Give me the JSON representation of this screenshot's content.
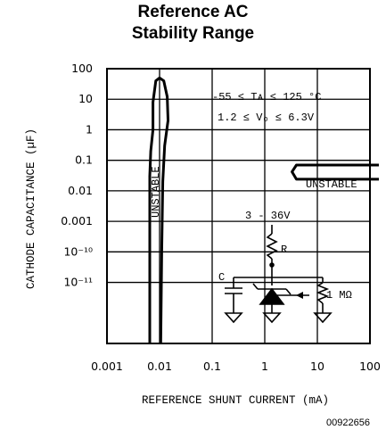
{
  "chart_data": {
    "type": "area",
    "title_line1": "Reference AC",
    "title_line2": "Stability Range",
    "xlabel": "REFERENCE SHUNT CURRENT (mA)",
    "ylabel": "CATHODE CAPACITANCE (µF)",
    "x_scale": "log",
    "y_scale": "log",
    "xlim": [
      0.001,
      100
    ],
    "ylim": [
      1e-07,
      100
    ],
    "x_ticks": [
      {
        "value": 0.001,
        "label": "0.001"
      },
      {
        "value": 0.01,
        "label": "0.01"
      },
      {
        "value": 0.1,
        "label": "0.1"
      },
      {
        "value": 1,
        "label": "1"
      },
      {
        "value": 10,
        "label": "10"
      },
      {
        "value": 100,
        "label": "100"
      }
    ],
    "y_ticks": [
      {
        "value": 100,
        "label": "100"
      },
      {
        "value": 10,
        "label": "10"
      },
      {
        "value": 1,
        "label": "1"
      },
      {
        "value": 0.1,
        "label": "0.1"
      },
      {
        "value": 0.01,
        "label": "0.01"
      },
      {
        "value": 0.001,
        "label": "0.001"
      },
      {
        "value": 0.0001,
        "label": "10⁻¹⁰"
      },
      {
        "value": 1e-05,
        "label": "10⁻¹¹"
      }
    ],
    "grid": true,
    "regions": [
      {
        "name": "UNSTABLE",
        "boundary": [
          {
            "x": 0.0065,
            "y": 1e-07
          },
          {
            "x": 0.0065,
            "y": 0.03
          },
          {
            "x": 0.0068,
            "y": 0.2
          },
          {
            "x": 0.0075,
            "y": 1
          },
          {
            "x": 0.0075,
            "y": 8
          },
          {
            "x": 0.0085,
            "y": 40
          },
          {
            "x": 0.01,
            "y": 50
          },
          {
            "x": 0.012,
            "y": 40
          },
          {
            "x": 0.014,
            "y": 12
          },
          {
            "x": 0.0145,
            "y": 2
          },
          {
            "x": 0.0125,
            "y": 0.3
          },
          {
            "x": 0.0115,
            "y": 0.02
          },
          {
            "x": 0.011,
            "y": 0.0001
          },
          {
            "x": 0.0105,
            "y": 1e-07
          }
        ]
      },
      {
        "name": "UNSTABLE",
        "boundary": [
          {
            "x": 100,
            "y": 0.07
          },
          {
            "x": 4.0,
            "y": 0.07
          },
          {
            "x": 3.3,
            "y": 0.042
          },
          {
            "x": 4.0,
            "y": 0.024
          },
          {
            "x": 100,
            "y": 0.024
          }
        ]
      }
    ],
    "conditions": [
      "-55 ≤ Tᴀ ≤ 125 °C",
      "1.2 ≤ Vₒ ≤ 6.3V"
    ],
    "inset": {
      "supply": "3 - 36V",
      "resistor": "R",
      "capacitor": "C",
      "pot": "1 MΩ"
    },
    "figure_id": "00922656"
  }
}
